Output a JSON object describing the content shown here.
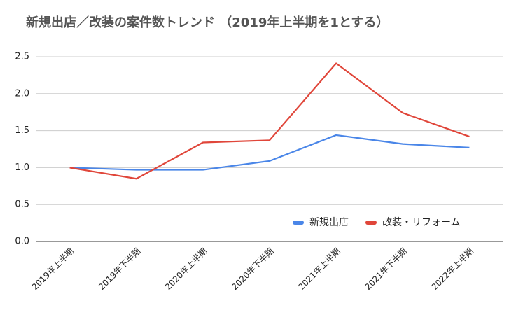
{
  "chart_data": {
    "type": "line",
    "title": "新規出店／改装の案件数トレンド （2019年上半期を1とする）",
    "categories": [
      "2019年上半期",
      "2019年下半期",
      "2020年上半期",
      "2020年下半期",
      "2021年上半期",
      "2021年下半期",
      "2022年上半期"
    ],
    "series": [
      {
        "name": "新規出店",
        "color": "#4a86e8",
        "values": [
          1.0,
          0.97,
          0.97,
          1.09,
          1.44,
          1.32,
          1.27
        ]
      },
      {
        "name": "改装・リフォーム",
        "color": "#e0463a",
        "values": [
          1.0,
          0.85,
          1.34,
          1.37,
          2.41,
          1.74,
          1.42
        ]
      }
    ],
    "ylim": [
      0,
      2.5
    ],
    "yticks": [
      {
        "value": 0,
        "label": "0.0"
      },
      0.5,
      {
        "value": 1,
        "label": "1.0"
      },
      1.5,
      {
        "value": 2,
        "label": "2.0"
      },
      2.5
    ],
    "grid": true,
    "legend": "bottom-right"
  }
}
